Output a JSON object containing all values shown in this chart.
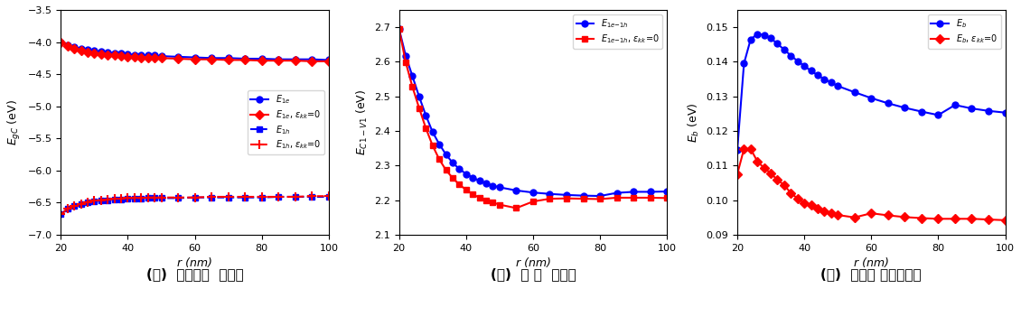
{
  "r": [
    20,
    22,
    24,
    26,
    28,
    30,
    32,
    34,
    36,
    38,
    40,
    42,
    44,
    46,
    48,
    50,
    55,
    60,
    65,
    70,
    75,
    80,
    85,
    90,
    95,
    100
  ],
  "plot1": {
    "E1e_blue": [
      -4.01,
      -4.05,
      -4.08,
      -4.1,
      -4.12,
      -4.14,
      -4.15,
      -4.16,
      -4.17,
      -4.18,
      -4.19,
      -4.2,
      -4.2,
      -4.21,
      -4.21,
      -4.22,
      -4.23,
      -4.24,
      -4.25,
      -4.25,
      -4.26,
      -4.26,
      -4.27,
      -4.27,
      -4.27,
      -4.28
    ],
    "E1e_red": [
      -4.01,
      -4.06,
      -4.1,
      -4.13,
      -4.16,
      -4.18,
      -4.19,
      -4.2,
      -4.21,
      -4.22,
      -4.23,
      -4.23,
      -4.24,
      -4.24,
      -4.25,
      -4.25,
      -4.26,
      -4.27,
      -4.27,
      -4.28,
      -4.28,
      -4.29,
      -4.29,
      -4.29,
      -4.3,
      -4.3
    ],
    "E1h_blue": [
      -6.68,
      -6.6,
      -6.55,
      -6.52,
      -6.49,
      -6.48,
      -6.47,
      -6.46,
      -6.45,
      -6.45,
      -6.44,
      -6.44,
      -6.44,
      -6.43,
      -6.43,
      -6.43,
      -6.43,
      -6.42,
      -6.42,
      -6.42,
      -6.42,
      -6.42,
      -6.41,
      -6.41,
      -6.41,
      -6.41
    ],
    "E1h_red": [
      -6.68,
      -6.6,
      -6.55,
      -6.52,
      -6.49,
      -6.47,
      -6.46,
      -6.45,
      -6.44,
      -6.44,
      -6.43,
      -6.43,
      -6.43,
      -6.42,
      -6.42,
      -6.42,
      -6.42,
      -6.42,
      -6.41,
      -6.41,
      -6.41,
      -6.41,
      -6.41,
      -6.41,
      -6.4,
      -6.4
    ],
    "ylabel": "$E_{gC}$ (eV)",
    "ylim": [
      -7.0,
      -3.5
    ],
    "yticks": [
      -7.0,
      -6.5,
      -6.0,
      -5.5,
      -5.0,
      -4.5,
      -4.0,
      -3.5
    ],
    "legend": [
      "$E_{1e}$",
      "$E_{1e}$, $\\varepsilon_{kk}$=0",
      "$E_{1h}$",
      "$E_{1h}$, $\\varepsilon_{kk}$=0"
    ],
    "caption": "(가)  기저상태  에너지"
  },
  "plot2": {
    "E1e1h_blue": [
      2.695,
      2.617,
      2.558,
      2.499,
      2.445,
      2.397,
      2.362,
      2.332,
      2.308,
      2.29,
      2.276,
      2.265,
      2.256,
      2.248,
      2.242,
      2.237,
      2.228,
      2.222,
      2.218,
      2.215,
      2.213,
      2.212,
      2.221,
      2.224,
      2.224,
      2.225
    ],
    "E1e1h_red": [
      2.695,
      2.598,
      2.527,
      2.466,
      2.408,
      2.358,
      2.318,
      2.287,
      2.264,
      2.245,
      2.23,
      2.217,
      2.207,
      2.199,
      2.193,
      2.187,
      2.177,
      2.196,
      2.204,
      2.205,
      2.204,
      2.203,
      2.207,
      2.207,
      2.207,
      2.206
    ],
    "ylabel": "$E_{C1-V1}$ (eV)",
    "ylim": [
      2.1,
      2.75
    ],
    "yticks": [
      2.1,
      2.2,
      2.3,
      2.4,
      2.5,
      2.6,
      2.7
    ],
    "legend": [
      "$E_{1e\\mathrm{-}1h}$",
      "$E_{1e\\mathrm{-}1h}$, $\\varepsilon_{kk}$=0"
    ],
    "caption": "(나)  띠 간  에너지"
  },
  "plot3": {
    "Eb_blue": [
      0.1145,
      0.1395,
      0.1465,
      0.148,
      0.1478,
      0.1468,
      0.1452,
      0.1435,
      0.1418,
      0.1402,
      0.1388,
      0.1374,
      0.1361,
      0.135,
      0.134,
      0.133,
      0.1312,
      0.1295,
      0.128,
      0.1267,
      0.1256,
      0.1246,
      0.1275,
      0.1265,
      0.1258,
      0.1253
    ],
    "Eb_red": [
      0.1075,
      0.1148,
      0.1148,
      0.1112,
      0.1093,
      0.1078,
      0.1058,
      0.1044,
      0.102,
      0.1005,
      0.0992,
      0.0985,
      0.0975,
      0.0968,
      0.0962,
      0.0957,
      0.095,
      0.0962,
      0.0956,
      0.0951,
      0.0948,
      0.0946,
      0.0946,
      0.0946,
      0.0944,
      0.0942
    ],
    "ylabel": "$E_{b}$ (eV)",
    "ylim": [
      0.09,
      0.155
    ],
    "yticks": [
      0.09,
      0.1,
      0.11,
      0.12,
      0.13,
      0.14,
      0.15
    ],
    "legend": [
      "$E_{b}$",
      "$E_{b}$, $\\varepsilon_{kk}$=0"
    ],
    "caption": "(다)  여기자 결합에너지"
  },
  "r_ticks": [
    20,
    40,
    60,
    80,
    100
  ],
  "xlabel": "r (nm)",
  "blue_color": "#0000FF",
  "red_color": "#FF0000",
  "marker_size": 5,
  "linewidth": 1.5
}
